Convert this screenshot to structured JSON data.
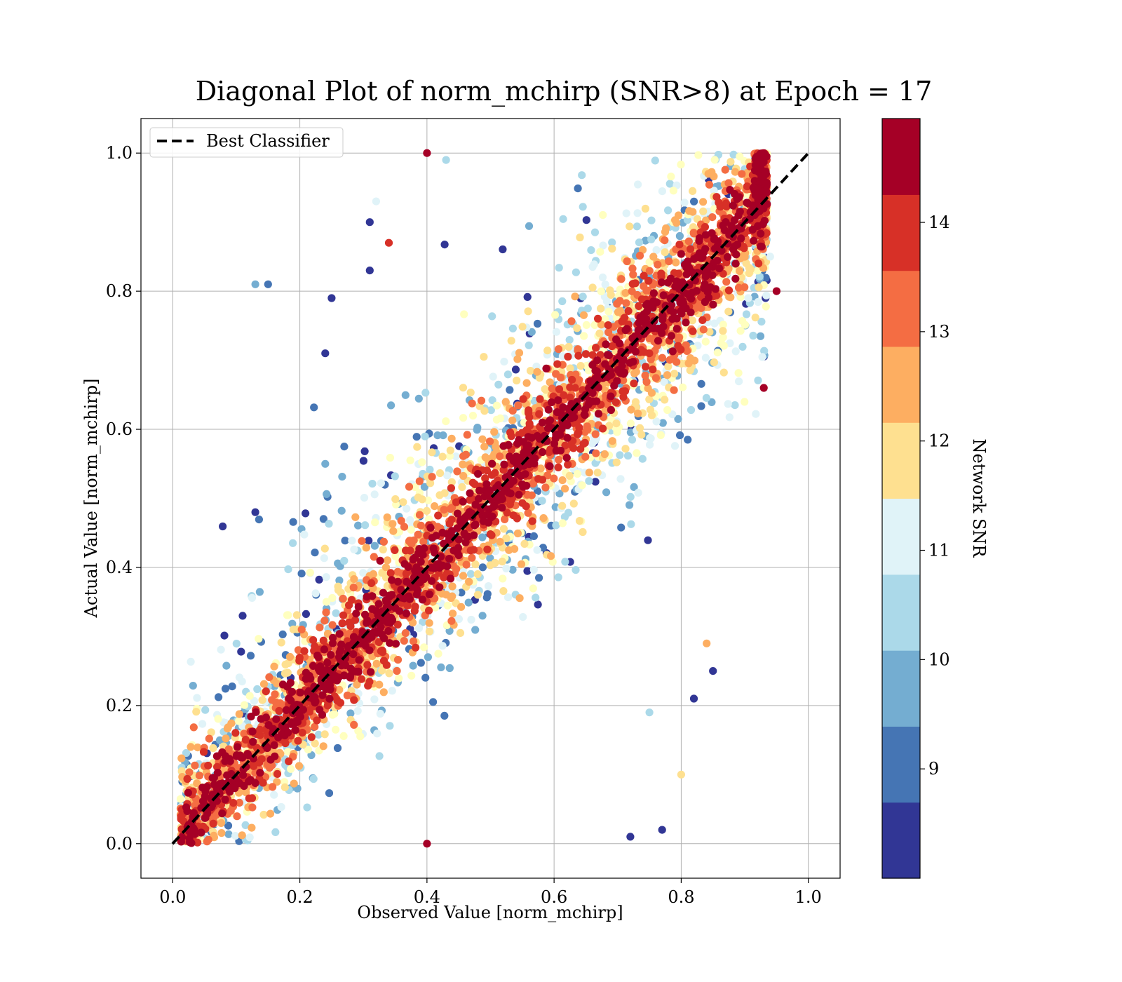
{
  "chart_data": {
    "type": "scatter",
    "title": "Diagonal Plot of norm_mchirp (SNR>8) at Epoch = 17",
    "xlabel": "Observed Value [norm_mchirp]",
    "ylabel": "Actual Value [norm_mchirp]",
    "xlim": [
      -0.05,
      1.05
    ],
    "ylim": [
      -0.05,
      1.05
    ],
    "xticks": [
      "0.0",
      "0.2",
      "0.4",
      "0.6",
      "0.8",
      "1.0"
    ],
    "yticks": [
      "0.0",
      "0.2",
      "0.4",
      "0.6",
      "0.8",
      "1.0"
    ],
    "grid": true,
    "legend": {
      "placement": "upper-left",
      "entries": [
        {
          "label": "Best Classifier",
          "style": "dashed",
          "color": "#000000"
        }
      ]
    },
    "reference_line": {
      "name": "Best Classifier",
      "x": [
        0.0,
        1.0
      ],
      "y": [
        0.0,
        1.0
      ]
    },
    "colorbar": {
      "label": "Network SNR",
      "range": [
        8,
        15
      ],
      "ticks": [
        "9",
        "10",
        "11",
        "12",
        "13",
        "14"
      ],
      "colors": [
        "#313695",
        "#4575b4",
        "#74add1",
        "#abd9e9",
        "#e0f3f8",
        "#ffffbf",
        "#fee090",
        "#fdae61",
        "#f46d43",
        "#d73027",
        "#a50026"
      ]
    },
    "series": [
      {
        "description_of_distribution": "points concentrated along the diagonal (high SNR, dark red) with increasing scatter for low-SNR points (blue); observed values range ~0.01-0.94, actual values 0.0-1.0",
        "sample_points": [
          [
            0.4,
            1.0,
            14.5
          ],
          [
            0.43,
            0.99,
            10.5
          ],
          [
            0.15,
            0.81,
            9.0
          ],
          [
            0.13,
            0.81,
            9.5
          ],
          [
            0.25,
            0.79,
            8.3
          ],
          [
            0.24,
            0.71,
            8.3
          ],
          [
            0.31,
            0.9,
            8.3
          ],
          [
            0.31,
            0.83,
            8.3
          ],
          [
            0.32,
            0.93,
            10.8
          ],
          [
            0.34,
            0.87,
            13.8
          ],
          [
            0.13,
            0.48,
            8.3
          ],
          [
            0.11,
            0.33,
            8.3
          ],
          [
            0.24,
            0.55,
            9.5
          ],
          [
            0.72,
            0.01,
            8.3
          ],
          [
            0.77,
            0.02,
            8.3
          ],
          [
            0.82,
            0.21,
            8.3
          ],
          [
            0.85,
            0.25,
            8.3
          ],
          [
            0.84,
            0.29,
            12.5
          ],
          [
            0.8,
            0.1,
            12.0
          ],
          [
            0.75,
            0.19,
            10.5
          ],
          [
            0.4,
            0.0,
            14.5
          ],
          [
            0.95,
            0.8,
            14.5
          ],
          [
            0.94,
            0.85,
            10.8
          ],
          [
            0.93,
            0.66,
            14.5
          ]
        ]
      }
    ]
  }
}
